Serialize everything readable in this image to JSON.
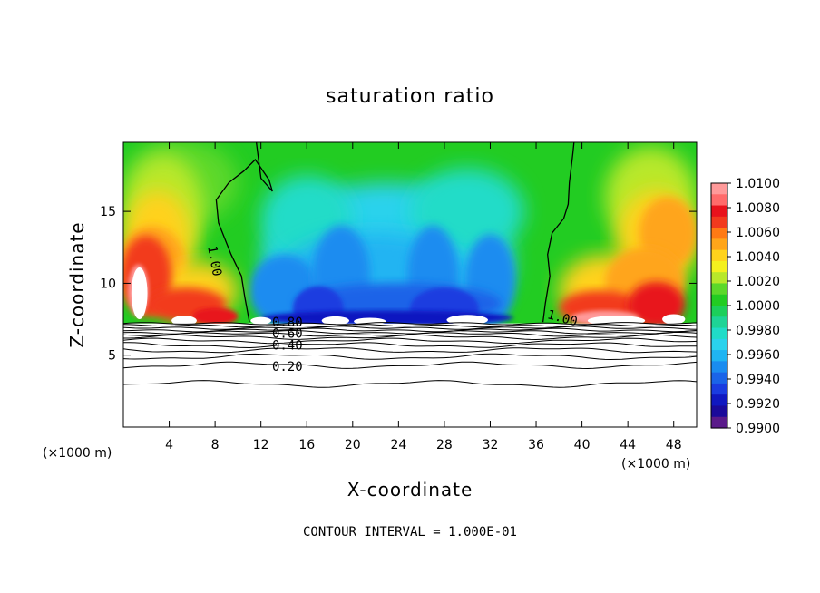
{
  "chart_data": {
    "type": "heatmap",
    "title": "saturation ratio",
    "xlabel": "X-coordinate",
    "ylabel": "Z-coordinate",
    "x_unit": "(×1000 m)",
    "x_unit_right": "(×1000 m)",
    "footer": "CONTOUR INTERVAL = 1.000E-01",
    "xlim": [
      0,
      50
    ],
    "ylim": [
      0,
      19.8
    ],
    "x_ticks": [
      4,
      8,
      12,
      16,
      20,
      24,
      28,
      32,
      36,
      40,
      44,
      48
    ],
    "y_ticks": [
      5,
      10,
      15
    ],
    "colorbar": {
      "ticks": [
        "1.0100",
        "1.0080",
        "1.0060",
        "1.0040",
        "1.0020",
        "1.0000",
        "0.9980",
        "0.9960",
        "0.9940",
        "0.9920",
        "0.9900"
      ],
      "colors": [
        "#ff9a9a",
        "#ff6b6b",
        "#e8121c",
        "#f23a1e",
        "#ff7a14",
        "#ffa51a",
        "#ffd21c",
        "#f4f01e",
        "#b8e82a",
        "#5cd82a",
        "#22cc22",
        "#1ccf5a",
        "#1ed496",
        "#20dcc8",
        "#2ad2ec",
        "#20b4f2",
        "#1a8cf0",
        "#1a64e8",
        "#1a3ce0",
        "#1018c0",
        "#1a0a9a",
        "#5a1a8a"
      ]
    },
    "contour_labels": [
      {
        "text": "1.00",
        "x": 7.6,
        "z": 11.5,
        "rotate": 80
      },
      {
        "text": "1.00",
        "x": 38.2,
        "z": 7.3,
        "rotate": 15
      },
      {
        "text": "0.80",
        "x": 14.3,
        "z": 7.0,
        "rotate": 0
      },
      {
        "text": "0.60",
        "x": 14.3,
        "z": 6.2,
        "rotate": 0
      },
      {
        "text": "0.40",
        "x": 14.3,
        "z": 5.4,
        "rotate": 0
      },
      {
        "text": "0.20",
        "x": 14.3,
        "z": 3.9,
        "rotate": 0
      }
    ],
    "contour_levels_z": [
      7.2,
      7.05,
      6.9,
      6.75,
      6.6,
      6.45,
      6.25,
      6.0,
      5.7,
      5.35,
      4.9,
      4.3,
      3.0
    ],
    "field_regions": [
      {
        "name": "left supersaturated plume",
        "x_range": [
          0,
          11
        ],
        "z_range": [
          7.2,
          19.8
        ],
        "max": 1.008
      },
      {
        "name": "central subsaturated region",
        "x_range": [
          11,
          36
        ],
        "z_range": [
          7.2,
          16
        ],
        "min": 0.9915
      },
      {
        "name": "right supersaturated plume",
        "x_range": [
          37,
          50
        ],
        "z_range": [
          7.2,
          19.8
        ],
        "max": 1.007
      }
    ]
  }
}
